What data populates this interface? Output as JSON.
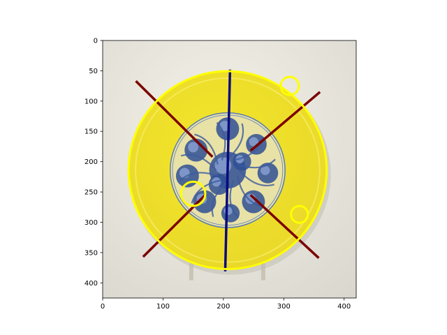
{
  "chart_data": {
    "type": "image",
    "x_ticks": [
      0,
      100,
      200,
      300,
      400
    ],
    "y_ticks": [
      0,
      50,
      100,
      150,
      200,
      250,
      300,
      350,
      400
    ],
    "xlim": [
      0,
      420
    ],
    "ylim": [
      425,
      0
    ],
    "y_axis_inverted": true,
    "grid": false,
    "image_subject": "yellow-glazed porcelain dish with blue-and-white fruit and flower medallion",
    "overlays": {
      "lines": [
        {
          "name": "vertical-axis-line",
          "color": "#0a0a80",
          "x1": 211,
          "y1": 48,
          "x2": 203,
          "y2": 381
        },
        {
          "name": "diagonal-upper-left",
          "color": "#7a0000",
          "x1": 55,
          "y1": 67,
          "x2": 182,
          "y2": 192
        },
        {
          "name": "diagonal-upper-right",
          "color": "#7a0000",
          "x1": 360,
          "y1": 85,
          "x2": 245,
          "y2": 182
        },
        {
          "name": "diagonal-lower-left",
          "color": "#7a0000",
          "x1": 67,
          "y1": 357,
          "x2": 170,
          "y2": 255
        },
        {
          "name": "diagonal-lower-right",
          "color": "#7a0000",
          "x1": 358,
          "y1": 359,
          "x2": 245,
          "y2": 255
        }
      ],
      "rim_circle": {
        "color": "#ffff00",
        "cx": 207,
        "cy": 214,
        "r": 164
      },
      "small_circles": [
        {
          "color": "#ffff00",
          "cx": 310,
          "cy": 75,
          "r": 15
        },
        {
          "color": "#ffff00",
          "cx": 150,
          "cy": 253,
          "r": 20
        },
        {
          "color": "#ffff00",
          "cx": 326,
          "cy": 287,
          "r": 14
        }
      ]
    }
  }
}
